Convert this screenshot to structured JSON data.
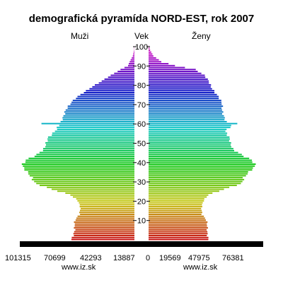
{
  "chart_data": {
    "type": "bar",
    "orientation": "horizontal-pyramid",
    "title": "demografická pyramída NORD-EST, rok 2007",
    "left_label": "Muži",
    "center_label": "Vek",
    "right_label": "Ženy",
    "age_ticks": [
      "10",
      "20",
      "30",
      "40",
      "50",
      "60",
      "70",
      "80",
      "90",
      "100"
    ],
    "left_ticks": [
      "101315",
      "70699",
      "42293",
      "13887"
    ],
    "right_ticks": [
      "0",
      "19569",
      "47975",
      "76381"
    ],
    "age_range": [
      0,
      100
    ],
    "population_max": 106000,
    "series": [
      {
        "name": "Muži",
        "anchors": [
          [
            0,
            59000
          ],
          [
            5,
            56000
          ],
          [
            10,
            55500
          ],
          [
            13,
            52000
          ],
          [
            17,
            50500
          ],
          [
            20,
            52500
          ],
          [
            23,
            60000
          ],
          [
            26,
            78000
          ],
          [
            29,
            92000
          ],
          [
            32,
            96000
          ],
          [
            35,
            101500
          ],
          [
            38,
            105000
          ],
          [
            41,
            101000
          ],
          [
            44,
            91500
          ],
          [
            47,
            85000
          ],
          [
            50,
            82000
          ],
          [
            53,
            80000
          ],
          [
            56,
            75000
          ],
          [
            59,
            71000
          ],
          [
            60,
            87000
          ],
          [
            61,
            68000
          ],
          [
            64,
            66000
          ],
          [
            67,
            65000
          ],
          [
            70,
            60500
          ],
          [
            73,
            55000
          ],
          [
            76,
            48000
          ],
          [
            79,
            40000
          ],
          [
            82,
            30500
          ],
          [
            85,
            22000
          ],
          [
            88,
            13000
          ],
          [
            90,
            6000
          ],
          [
            92,
            4500
          ],
          [
            95,
            1500
          ],
          [
            98,
            300
          ],
          [
            100,
            100
          ]
        ]
      },
      {
        "name": "Ženy",
        "anchors": [
          [
            0,
            56000
          ],
          [
            5,
            55000
          ],
          [
            10,
            54000
          ],
          [
            13,
            50500
          ],
          [
            17,
            49500
          ],
          [
            20,
            51000
          ],
          [
            23,
            56000
          ],
          [
            26,
            71000
          ],
          [
            29,
            86500
          ],
          [
            32,
            89000
          ],
          [
            35,
            95000
          ],
          [
            38,
            100000
          ],
          [
            41,
            96000
          ],
          [
            44,
            87000
          ],
          [
            47,
            79000
          ],
          [
            50,
            76000
          ],
          [
            53,
            75000
          ],
          [
            56,
            72500
          ],
          [
            59,
            78000
          ],
          [
            60,
            83000
          ],
          [
            61,
            72000
          ],
          [
            64,
            70000
          ],
          [
            67,
            69500
          ],
          [
            70,
            69000
          ],
          [
            73,
            66000
          ],
          [
            76,
            62500
          ],
          [
            79,
            59000
          ],
          [
            82,
            56000
          ],
          [
            85,
            52000
          ],
          [
            88,
            44000
          ],
          [
            90,
            25000
          ],
          [
            92,
            12000
          ],
          [
            95,
            4500
          ],
          [
            98,
            1500
          ],
          [
            100,
            400
          ]
        ]
      }
    ],
    "base_bar_color": "#000000"
  },
  "source": {
    "left": "www.iz.sk",
    "right": "www.iz.sk"
  }
}
